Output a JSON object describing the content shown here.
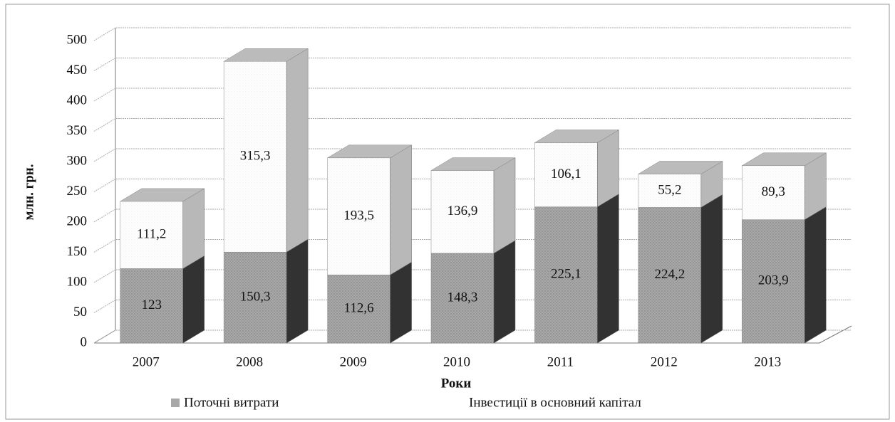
{
  "chart_data": {
    "type": "bar3d_stacked",
    "y_label": "млн. грн.",
    "x_label": "Роки",
    "categories": [
      "2007",
      "2008",
      "2009",
      "2010",
      "2011",
      "2012",
      "2013"
    ],
    "series": [
      {
        "name": "Поточні витрати",
        "color": "#a8a8a8",
        "values": [
          123,
          150.3,
          112.6,
          148.3,
          225.1,
          224.2,
          203.9
        ],
        "value_labels": [
          "123",
          "150,3",
          "112,6",
          "148,3",
          "225,1",
          "224,2",
          "203,9"
        ]
      },
      {
        "name": "Інвестиції в основний капітал",
        "color": "#ffffff",
        "values": [
          111.2,
          315.3,
          193.5,
          136.9,
          106.1,
          55.2,
          89.3
        ],
        "value_labels": [
          "111,2",
          "315,3",
          "193,5",
          "136,9",
          "106,1",
          "55,2",
          "89,3"
        ]
      }
    ],
    "ylim": [
      0,
      500
    ],
    "yticks": [
      0,
      50,
      100,
      150,
      200,
      250,
      300,
      350,
      400,
      450,
      500
    ],
    "grid": true,
    "legend": "bottom"
  }
}
